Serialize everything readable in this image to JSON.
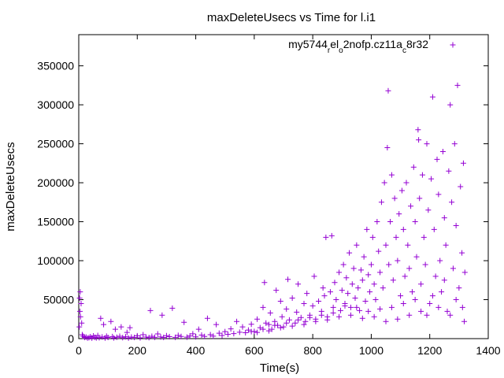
{
  "chart_data": {
    "type": "scatter",
    "title": "maxDeleteUsecs vs Time for l.i1",
    "xlabel": "Time(s)",
    "ylabel": "maxDeleteUsecs",
    "xlim": [
      0,
      1400
    ],
    "ylim": [
      0,
      390000
    ],
    "x_ticks": [
      0,
      200,
      400,
      600,
      800,
      1000,
      1200,
      1400
    ],
    "y_ticks": [
      0,
      50000,
      100000,
      150000,
      200000,
      250000,
      300000,
      350000
    ],
    "grid": false,
    "legend_position": "top-right",
    "marker": "+",
    "color": "#9400d3",
    "series": [
      {
        "name_parts": [
          "my5744",
          "r",
          "el",
          "o",
          "2nofp.cz11a",
          "c",
          "8r32"
        ],
        "points": [
          [
            3,
            52000
          ],
          [
            5,
            60000
          ],
          [
            8,
            45000
          ],
          [
            4,
            35000
          ],
          [
            6,
            28000
          ],
          [
            10,
            20000
          ],
          [
            2,
            15000
          ],
          [
            12,
            5000
          ],
          [
            15,
            3000
          ],
          [
            20,
            1500
          ],
          [
            25,
            2000
          ],
          [
            30,
            800
          ],
          [
            35,
            1200
          ],
          [
            40,
            2500
          ],
          [
            45,
            600
          ],
          [
            50,
            3500
          ],
          [
            55,
            1800
          ],
          [
            60,
            900
          ],
          [
            65,
            4000
          ],
          [
            70,
            1100
          ],
          [
            75,
            26000
          ],
          [
            80,
            2200
          ],
          [
            85,
            18000
          ],
          [
            90,
            700
          ],
          [
            95,
            3200
          ],
          [
            100,
            1500
          ],
          [
            110,
            22000
          ],
          [
            115,
            2600
          ],
          [
            120,
            900
          ],
          [
            125,
            12000
          ],
          [
            130,
            1800
          ],
          [
            140,
            3000
          ],
          [
            145,
            15000
          ],
          [
            150,
            1200
          ],
          [
            160,
            2400
          ],
          [
            165,
            8000
          ],
          [
            170,
            700
          ],
          [
            175,
            14000
          ],
          [
            180,
            2000
          ],
          [
            190,
            1500
          ],
          [
            200,
            3600
          ],
          [
            210,
            1000
          ],
          [
            220,
            5000
          ],
          [
            230,
            2000
          ],
          [
            240,
            1300
          ],
          [
            245,
            36000
          ],
          [
            250,
            3000
          ],
          [
            260,
            1600
          ],
          [
            270,
            6000
          ],
          [
            280,
            2200
          ],
          [
            285,
            30000
          ],
          [
            290,
            1500
          ],
          [
            300,
            3800
          ],
          [
            310,
            2500
          ],
          [
            320,
            39000
          ],
          [
            330,
            1700
          ],
          [
            340,
            4200
          ],
          [
            350,
            2800
          ],
          [
            360,
            21000
          ],
          [
            370,
            1900
          ],
          [
            380,
            3400
          ],
          [
            390,
            6200
          ],
          [
            400,
            2300
          ],
          [
            410,
            12000
          ],
          [
            420,
            4600
          ],
          [
            430,
            2800
          ],
          [
            440,
            26000
          ],
          [
            450,
            5000
          ],
          [
            460,
            3200
          ],
          [
            470,
            18000
          ],
          [
            480,
            7000
          ],
          [
            490,
            4100
          ],
          [
            500,
            9000
          ],
          [
            510,
            5600
          ],
          [
            520,
            12500
          ],
          [
            530,
            6400
          ],
          [
            540,
            22000
          ],
          [
            550,
            8200
          ],
          [
            560,
            15000
          ],
          [
            570,
            7600
          ],
          [
            580,
            11000
          ],
          [
            590,
            18500
          ],
          [
            600,
            9200
          ],
          [
            610,
            25000
          ],
          [
            620,
            14000
          ],
          [
            630,
            40000
          ],
          [
            635,
            72000
          ],
          [
            640,
            20000
          ],
          [
            650,
            18000
          ],
          [
            655,
            33000
          ],
          [
            660,
            12000
          ],
          [
            670,
            22000
          ],
          [
            675,
            62000
          ],
          [
            680,
            17000
          ],
          [
            690,
            48000
          ],
          [
            695,
            28000
          ],
          [
            700,
            15000
          ],
          [
            710,
            38000
          ],
          [
            715,
            76000
          ],
          [
            720,
            24000
          ],
          [
            730,
            52000
          ],
          [
            740,
            20000
          ],
          [
            745,
            34000
          ],
          [
            750,
            70000
          ],
          [
            760,
            27000
          ],
          [
            770,
            45000
          ],
          [
            775,
            22000
          ],
          [
            780,
            58000
          ],
          [
            790,
            30000
          ],
          [
            800,
            42000
          ],
          [
            805,
            80000
          ],
          [
            810,
            25000
          ],
          [
            820,
            48000
          ],
          [
            830,
            35000
          ],
          [
            835,
            65000
          ],
          [
            840,
            55000
          ],
          [
            845,
            130000
          ],
          [
            850,
            28000
          ],
          [
            860,
            60000
          ],
          [
            865,
            132000
          ],
          [
            870,
            40000
          ],
          [
            875,
            72000
          ],
          [
            880,
            50000
          ],
          [
            890,
            85000
          ],
          [
            895,
            36000
          ],
          [
            900,
            62000
          ],
          [
            905,
            95000
          ],
          [
            910,
            45000
          ],
          [
            915,
            78000
          ],
          [
            920,
            58000
          ],
          [
            925,
            110000
          ],
          [
            930,
            40000
          ],
          [
            935,
            70000
          ],
          [
            940,
            90000
          ],
          [
            945,
            52000
          ],
          [
            950,
            120000
          ],
          [
            955,
            65000
          ],
          [
            960,
            36000
          ],
          [
            965,
            88000
          ],
          [
            970,
            75000
          ],
          [
            975,
            105000
          ],
          [
            980,
            48000
          ],
          [
            985,
            140000
          ],
          [
            990,
            82000
          ],
          [
            995,
            60000
          ],
          [
            1000,
            95000
          ],
          [
            1005,
            130000
          ],
          [
            1010,
            70000
          ],
          [
            1015,
            50000
          ],
          [
            1020,
            150000
          ],
          [
            1025,
            112000
          ],
          [
            1030,
            85000
          ],
          [
            1035,
            175000
          ],
          [
            1040,
            65000
          ],
          [
            1045,
            200000
          ],
          [
            1050,
            120000
          ],
          [
            1055,
            245000
          ],
          [
            1058,
            318000
          ],
          [
            1060,
            95000
          ],
          [
            1065,
            150000
          ],
          [
            1070,
            210000
          ],
          [
            1075,
            75000
          ],
          [
            1080,
            180000
          ],
          [
            1085,
            130000
          ],
          [
            1090,
            100000
          ],
          [
            1095,
            160000
          ],
          [
            1100,
            55000
          ],
          [
            1105,
            190000
          ],
          [
            1110,
            140000
          ],
          [
            1115,
            80000
          ],
          [
            1120,
            200000
          ],
          [
            1125,
            120000
          ],
          [
            1130,
            90000
          ],
          [
            1135,
            170000
          ],
          [
            1140,
            60000
          ],
          [
            1145,
            220000
          ],
          [
            1150,
            150000
          ],
          [
            1155,
            105000
          ],
          [
            1160,
            268000
          ],
          [
            1162,
            255000
          ],
          [
            1165,
            180000
          ],
          [
            1170,
            70000
          ],
          [
            1175,
            210000
          ],
          [
            1180,
            130000
          ],
          [
            1185,
            95000
          ],
          [
            1190,
            250000
          ],
          [
            1195,
            165000
          ],
          [
            1200,
            45000
          ],
          [
            1205,
            205000
          ],
          [
            1210,
            310000
          ],
          [
            1215,
            140000
          ],
          [
            1220,
            80000
          ],
          [
            1225,
            230000
          ],
          [
            1230,
            185000
          ],
          [
            1235,
            100000
          ],
          [
            1240,
            60000
          ],
          [
            1245,
            240000
          ],
          [
            1250,
            155000
          ],
          [
            1255,
            120000
          ],
          [
            1260,
            35000
          ],
          [
            1265,
            215000
          ],
          [
            1270,
            300000
          ],
          [
            1275,
            175000
          ],
          [
            1280,
            90000
          ],
          [
            1285,
            250000
          ],
          [
            1290,
            145000
          ],
          [
            1295,
            325000
          ],
          [
            1300,
            65000
          ],
          [
            1305,
            195000
          ],
          [
            1310,
            110000
          ],
          [
            1315,
            225000
          ],
          [
            1320,
            85000
          ],
          [
            1318,
            22000
          ],
          [
            1312,
            40000
          ],
          [
            1290,
            50000
          ],
          [
            1270,
            30000
          ],
          [
            1250,
            75000
          ],
          [
            1230,
            40000
          ],
          [
            1210,
            55000
          ],
          [
            1190,
            30000
          ],
          [
            1170,
            35000
          ],
          [
            1150,
            50000
          ],
          [
            1130,
            30000
          ],
          [
            1110,
            45000
          ],
          [
            1090,
            25000
          ],
          [
            1070,
            40000
          ],
          [
            1050,
            22000
          ],
          [
            1030,
            38000
          ],
          [
            1010,
            28000
          ],
          [
            990,
            35000
          ],
          [
            970,
            26000
          ],
          [
            950,
            40000
          ],
          [
            930,
            30000
          ],
          [
            910,
            42000
          ],
          [
            890,
            28000
          ],
          [
            870,
            33000
          ],
          [
            850,
            24000
          ],
          [
            830,
            30000
          ],
          [
            810,
            22000
          ],
          [
            790,
            27000
          ],
          [
            770,
            18000
          ],
          [
            750,
            24000
          ],
          [
            730,
            16000
          ],
          [
            710,
            20000
          ],
          [
            690,
            14000
          ],
          [
            670,
            17000
          ],
          [
            650,
            10000
          ],
          [
            630,
            12000
          ],
          [
            610,
            8000
          ],
          [
            590,
            9000
          ]
        ]
      }
    ]
  }
}
